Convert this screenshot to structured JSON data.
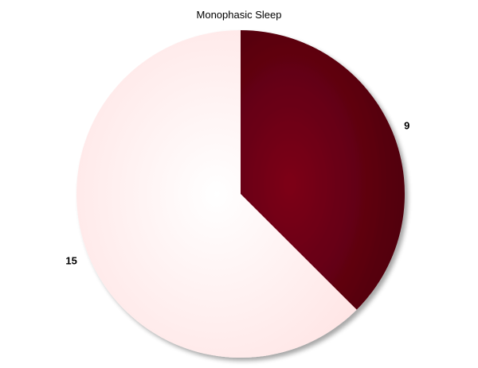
{
  "chart_data": {
    "type": "pie",
    "title": "Monophasic Sleep",
    "slices": [
      {
        "label": "9",
        "value": 9,
        "color": "#6b0015"
      },
      {
        "label": "15",
        "value": 15,
        "color": "#ffe8e8"
      }
    ],
    "start_angle_deg": -90,
    "direction": "clockwise",
    "legend": "none"
  }
}
